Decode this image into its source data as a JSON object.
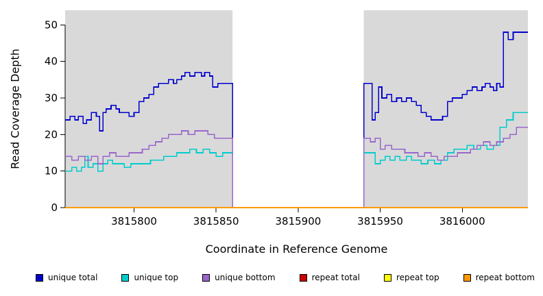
{
  "chart_data": {
    "type": "line",
    "title": "",
    "xlabel": "Coordinate in Reference Genome",
    "ylabel": "Read Coverage Depth",
    "xlim": [
      3815758,
      3816040
    ],
    "ylim": [
      0,
      54
    ],
    "x_ticks": [
      3815800,
      3815850,
      3815900,
      3815950,
      3816000
    ],
    "y_ticks": [
      0,
      10,
      20,
      30,
      40,
      50
    ],
    "step": true,
    "grid": false,
    "legend_position": "bottom",
    "plot_background": "#ffffff",
    "shaded_regions": [
      {
        "x0": 3815758,
        "x1": 3815860,
        "color": "#d9d9d9"
      },
      {
        "x0": 3815940,
        "x1": 3816040,
        "color": "#d9d9d9"
      }
    ],
    "series": [
      {
        "name": "unique total",
        "color": "#0000cd",
        "points": [
          [
            3815758,
            24
          ],
          [
            3815761,
            25
          ],
          [
            3815764,
            24
          ],
          [
            3815766,
            25
          ],
          [
            3815769,
            23
          ],
          [
            3815771,
            24
          ],
          [
            3815774,
            26
          ],
          [
            3815777,
            25
          ],
          [
            3815779,
            21
          ],
          [
            3815781,
            26
          ],
          [
            3815783,
            27
          ],
          [
            3815786,
            28
          ],
          [
            3815789,
            27
          ],
          [
            3815791,
            26
          ],
          [
            3815794,
            26
          ],
          [
            3815797,
            25
          ],
          [
            3815800,
            26
          ],
          [
            3815803,
            29
          ],
          [
            3815806,
            30
          ],
          [
            3815809,
            31
          ],
          [
            3815812,
            33
          ],
          [
            3815815,
            34
          ],
          [
            3815818,
            34
          ],
          [
            3815821,
            35
          ],
          [
            3815824,
            34
          ],
          [
            3815826,
            35
          ],
          [
            3815829,
            36
          ],
          [
            3815831,
            37
          ],
          [
            3815834,
            36
          ],
          [
            3815837,
            37
          ],
          [
            3815841,
            36
          ],
          [
            3815843,
            37
          ],
          [
            3815846,
            36
          ],
          [
            3815848,
            33
          ],
          [
            3815851,
            34
          ],
          [
            3815854,
            34
          ],
          [
            3815860,
            0
          ],
          [
            3815940,
            34
          ],
          [
            3815943,
            34
          ],
          [
            3815945,
            24
          ],
          [
            3815947,
            26
          ],
          [
            3815949,
            33
          ],
          [
            3815951,
            30
          ],
          [
            3815954,
            31
          ],
          [
            3815957,
            29
          ],
          [
            3815960,
            30
          ],
          [
            3815963,
            29
          ],
          [
            3815966,
            30
          ],
          [
            3815969,
            29
          ],
          [
            3815972,
            28
          ],
          [
            3815975,
            26
          ],
          [
            3815978,
            25
          ],
          [
            3815981,
            24
          ],
          [
            3815985,
            24
          ],
          [
            3815988,
            25
          ],
          [
            3815991,
            29
          ],
          [
            3815994,
            30
          ],
          [
            3815997,
            30
          ],
          [
            3816000,
            31
          ],
          [
            3816003,
            32
          ],
          [
            3816006,
            33
          ],
          [
            3816009,
            32
          ],
          [
            3816012,
            33
          ],
          [
            3816014,
            34
          ],
          [
            3816017,
            33
          ],
          [
            3816019,
            32
          ],
          [
            3816021,
            34
          ],
          [
            3816023,
            33
          ],
          [
            3816025,
            48
          ],
          [
            3816028,
            46
          ],
          [
            3816031,
            48
          ],
          [
            3816040,
            48
          ]
        ]
      },
      {
        "name": "unique top",
        "color": "#00cccc",
        "points": [
          [
            3815758,
            10
          ],
          [
            3815762,
            11
          ],
          [
            3815765,
            10
          ],
          [
            3815768,
            11
          ],
          [
            3815770,
            14
          ],
          [
            3815772,
            11
          ],
          [
            3815775,
            12
          ],
          [
            3815778,
            10
          ],
          [
            3815781,
            12
          ],
          [
            3815784,
            13
          ],
          [
            3815787,
            12
          ],
          [
            3815790,
            12
          ],
          [
            3815794,
            11
          ],
          [
            3815798,
            12
          ],
          [
            3815802,
            12
          ],
          [
            3815806,
            12
          ],
          [
            3815810,
            13
          ],
          [
            3815814,
            13
          ],
          [
            3815818,
            14
          ],
          [
            3815822,
            14
          ],
          [
            3815826,
            15
          ],
          [
            3815830,
            15
          ],
          [
            3815834,
            16
          ],
          [
            3815838,
            15
          ],
          [
            3815842,
            16
          ],
          [
            3815846,
            15
          ],
          [
            3815850,
            14
          ],
          [
            3815854,
            15
          ],
          [
            3815860,
            0
          ],
          [
            3815940,
            15
          ],
          [
            3815944,
            15
          ],
          [
            3815947,
            12
          ],
          [
            3815950,
            13
          ],
          [
            3815953,
            14
          ],
          [
            3815956,
            13
          ],
          [
            3815959,
            14
          ],
          [
            3815962,
            13
          ],
          [
            3815966,
            14
          ],
          [
            3815969,
            13
          ],
          [
            3815972,
            13
          ],
          [
            3815975,
            12
          ],
          [
            3815979,
            13
          ],
          [
            3815983,
            12
          ],
          [
            3815987,
            13
          ],
          [
            3815991,
            15
          ],
          [
            3815995,
            16
          ],
          [
            3815999,
            16
          ],
          [
            3816003,
            17
          ],
          [
            3816007,
            16
          ],
          [
            3816011,
            17
          ],
          [
            3816015,
            16
          ],
          [
            3816019,
            17
          ],
          [
            3816023,
            22
          ],
          [
            3816027,
            24
          ],
          [
            3816031,
            26
          ],
          [
            3816040,
            26
          ]
        ]
      },
      {
        "name": "unique bottom",
        "color": "#9966cc",
        "points": [
          [
            3815758,
            14
          ],
          [
            3815762,
            13
          ],
          [
            3815766,
            14
          ],
          [
            3815770,
            13
          ],
          [
            3815774,
            14
          ],
          [
            3815778,
            12
          ],
          [
            3815781,
            14
          ],
          [
            3815785,
            15
          ],
          [
            3815789,
            14
          ],
          [
            3815793,
            14
          ],
          [
            3815797,
            15
          ],
          [
            3815801,
            15
          ],
          [
            3815805,
            16
          ],
          [
            3815809,
            17
          ],
          [
            3815813,
            18
          ],
          [
            3815817,
            19
          ],
          [
            3815821,
            20
          ],
          [
            3815825,
            20
          ],
          [
            3815829,
            21
          ],
          [
            3815833,
            20
          ],
          [
            3815837,
            21
          ],
          [
            3815841,
            21
          ],
          [
            3815845,
            20
          ],
          [
            3815849,
            19
          ],
          [
            3815854,
            19
          ],
          [
            3815860,
            0
          ],
          [
            3815940,
            19
          ],
          [
            3815944,
            18
          ],
          [
            3815947,
            19
          ],
          [
            3815950,
            16
          ],
          [
            3815953,
            17
          ],
          [
            3815957,
            16
          ],
          [
            3815961,
            16
          ],
          [
            3815965,
            15
          ],
          [
            3815969,
            15
          ],
          [
            3815973,
            14
          ],
          [
            3815977,
            15
          ],
          [
            3815981,
            14
          ],
          [
            3815985,
            13
          ],
          [
            3815989,
            14
          ],
          [
            3815993,
            14
          ],
          [
            3815997,
            15
          ],
          [
            3816001,
            15
          ],
          [
            3816005,
            16
          ],
          [
            3816009,
            17
          ],
          [
            3816013,
            18
          ],
          [
            3816017,
            17
          ],
          [
            3816021,
            18
          ],
          [
            3816025,
            19
          ],
          [
            3816029,
            20
          ],
          [
            3816033,
            22
          ],
          [
            3816040,
            22
          ]
        ]
      },
      {
        "name": "repeat total",
        "color": "#cc0000",
        "points": [
          [
            3815758,
            0
          ],
          [
            3816040,
            0
          ]
        ]
      },
      {
        "name": "repeat top",
        "color": "#ffff00",
        "points": [
          [
            3815758,
            0
          ],
          [
            3816040,
            0
          ]
        ]
      },
      {
        "name": "repeat bottom",
        "color": "#ff9900",
        "points": [
          [
            3815758,
            0
          ],
          [
            3816040,
            0
          ]
        ]
      }
    ]
  }
}
